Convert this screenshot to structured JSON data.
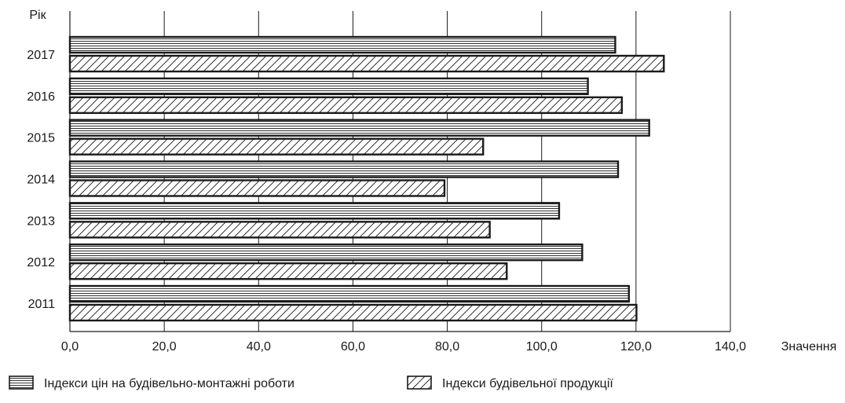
{
  "chart_data": {
    "type": "bar",
    "orientation": "horizontal",
    "title": "",
    "xlabel": "Значення",
    "ylabel": "Рік",
    "categories": [
      "2011",
      "2012",
      "2013",
      "2014",
      "2015",
      "2016",
      "2017"
    ],
    "series": [
      {
        "name": "Індекси цін на будівельно-монтажні роботи",
        "pattern": "horizontal-lines",
        "values": [
          118.5,
          108.6,
          103.7,
          116.2,
          122.8,
          109.8,
          115.6
        ]
      },
      {
        "name": "Індекси будівельної продукції",
        "pattern": "diagonal-hatch",
        "values": [
          120.1,
          92.6,
          89.0,
          79.4,
          87.6,
          117.0,
          125.9
        ]
      }
    ],
    "xlim": [
      0,
      140
    ],
    "xticks": [
      "0,0",
      "20,0",
      "40,0",
      "60,0",
      "80,0",
      "100,0",
      "120,0",
      "140,0"
    ],
    "grid": "vertical",
    "legend_position": "bottom",
    "colors": {
      "stroke": "#1a1a1a",
      "background": "#ffffff"
    }
  }
}
